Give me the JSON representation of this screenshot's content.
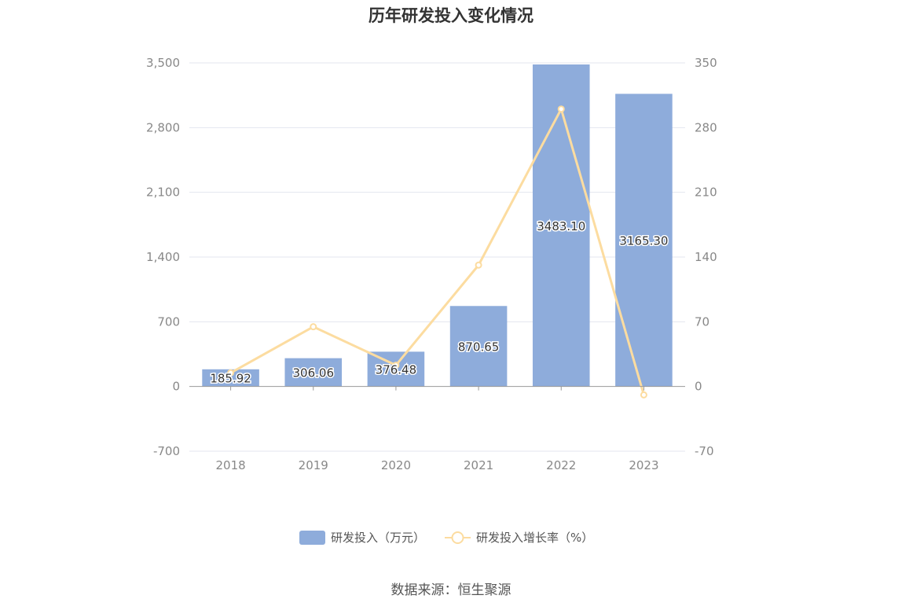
{
  "chart_data": {
    "type": "bar",
    "title": "历年研发投入变化情况",
    "categories": [
      "2018",
      "2019",
      "2020",
      "2021",
      "2022",
      "2023"
    ],
    "series": [
      {
        "name": "研发投入（万元）",
        "type": "bar",
        "axis": "left",
        "values": [
          185.92,
          306.06,
          376.48,
          870.65,
          3483.1,
          3165.3
        ],
        "labels": [
          "185.92",
          "306.06",
          "376.48",
          "870.65",
          "3483.10",
          "3165.30"
        ],
        "color": "#8eacdb"
      },
      {
        "name": "研发投入增长率（%）",
        "type": "line",
        "axis": "right",
        "values": [
          14.8,
          64.6,
          23.0,
          131.3,
          300.1,
          -9.1
        ],
        "color": "#fcdca0"
      }
    ],
    "y_left": {
      "ylim": [
        -700,
        3500
      ],
      "ticks": [
        "3,500",
        "2,800",
        "2,100",
        "1,400",
        "700",
        "0",
        "-700"
      ]
    },
    "y_right": {
      "ylim": [
        -70,
        350
      ],
      "ticks": [
        "350",
        "280",
        "210",
        "140",
        "70",
        "0",
        "-70"
      ]
    },
    "grid": true,
    "legend_position": "bottom"
  },
  "source_text": "数据来源：恒生聚源"
}
